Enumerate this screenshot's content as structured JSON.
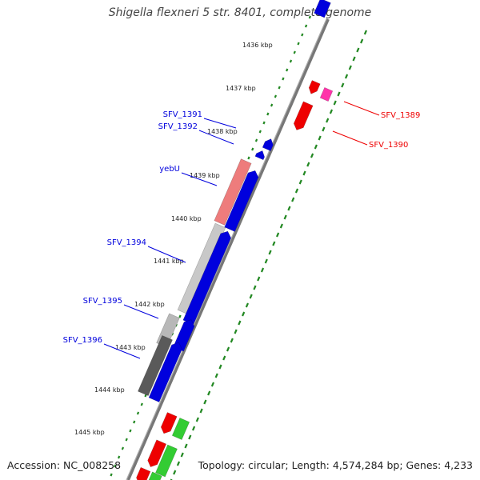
{
  "title": "Shigella flexneri 5 str. 8401, complete genome",
  "footer": {
    "accession": "Accession: NC_008258",
    "summary": "Topology: circular; Length: 4,574,284 bp; Genes: 4,233"
  },
  "colors": {
    "forward_cds": "#ee0000",
    "reverse_cds": "#0000dd",
    "rna": "#ff33aa",
    "gc_high": "#33cc33",
    "backbone": "#777777",
    "tick": "#228822"
  },
  "kbp_ticks": [
    "1436 kbp",
    "1437 kbp",
    "1438 kbp",
    "1439 kbp",
    "1440 kbp",
    "1441 kbp",
    "1442 kbp",
    "1443 kbp",
    "1444 kbp",
    "1445 kbp"
  ],
  "gene_labels": {
    "reverse": [
      "SFV_1391",
      "SFV_1392",
      "yebU",
      "SFV_1394",
      "SFV_1395",
      "SFV_1396"
    ],
    "forward": [
      "SFV_1389",
      "SFV_1390"
    ]
  }
}
